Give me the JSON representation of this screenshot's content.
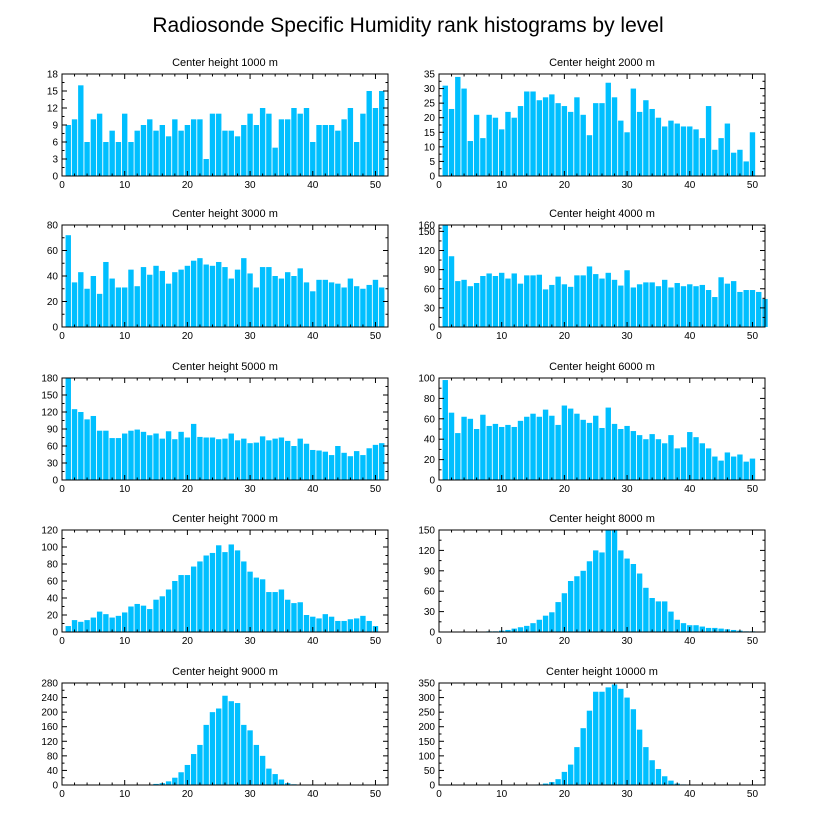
{
  "figure_title": "Radiosonde Specific Humidity rank histograms by level",
  "bar_color": "#00BFFF",
  "chart_data": [
    {
      "type": "bar",
      "title": "Center height 1000 m",
      "xlim": [
        0,
        52
      ],
      "ylim": [
        0,
        18
      ],
      "xticks": [
        0,
        10,
        20,
        30,
        40,
        50
      ],
      "yticks": [
        0,
        3,
        6,
        9,
        12,
        15,
        18
      ],
      "values": [
        9,
        10,
        16,
        6,
        10,
        11,
        6,
        8,
        6,
        11,
        6,
        8,
        9,
        10,
        8,
        9,
        7,
        10,
        8,
        9,
        10,
        10,
        3,
        11,
        11,
        8,
        8,
        7,
        9,
        11,
        9,
        12,
        11,
        5,
        10,
        10,
        12,
        11,
        12,
        6,
        9,
        9,
        9,
        8,
        10,
        12,
        6,
        11,
        15,
        12,
        15
      ]
    },
    {
      "type": "bar",
      "title": "Center height 2000 m",
      "xlim": [
        0,
        52
      ],
      "ylim": [
        0,
        35
      ],
      "xticks": [
        0,
        10,
        20,
        30,
        40,
        50
      ],
      "yticks": [
        0,
        5,
        10,
        15,
        20,
        25,
        30,
        35
      ],
      "values": [
        31,
        23,
        34,
        30,
        12,
        21,
        13,
        21,
        20,
        16,
        22,
        20,
        24,
        29,
        29,
        26,
        27,
        28,
        25,
        24,
        22,
        27,
        21,
        14,
        25,
        25,
        32,
        27,
        19,
        15,
        30,
        22,
        26,
        23,
        20,
        17,
        19,
        18,
        17,
        17,
        16,
        13,
        24,
        9,
        13,
        18,
        8,
        9,
        5,
        15
      ]
    },
    {
      "type": "bar",
      "title": "Center height 3000 m",
      "xlim": [
        0,
        52
      ],
      "ylim": [
        0,
        80
      ],
      "xticks": [
        0,
        10,
        20,
        30,
        40,
        50
      ],
      "yticks": [
        0,
        20,
        40,
        60,
        80
      ],
      "values": [
        72,
        35,
        43,
        30,
        40,
        26,
        51,
        38,
        31,
        31,
        45,
        32,
        47,
        41,
        48,
        44,
        34,
        43,
        45,
        48,
        52,
        54,
        49,
        48,
        51,
        47,
        38,
        45,
        54,
        42,
        31,
        47,
        47,
        40,
        38,
        43,
        40,
        46,
        35,
        28,
        37,
        37,
        35,
        34,
        31,
        38,
        32,
        30,
        33,
        37,
        31
      ]
    },
    {
      "type": "bar",
      "title": "Center height 4000 m",
      "xlim": [
        0,
        52
      ],
      "ylim": [
        0,
        160
      ],
      "xticks": [
        0,
        10,
        20,
        30,
        40,
        50
      ],
      "yticks": [
        0,
        30,
        60,
        90,
        120,
        150,
        160
      ],
      "values": [
        162,
        111,
        72,
        74,
        64,
        69,
        80,
        84,
        80,
        85,
        76,
        84,
        68,
        81,
        81,
        82,
        59,
        66,
        79,
        67,
        63,
        81,
        81,
        95,
        83,
        76,
        85,
        74,
        65,
        89,
        62,
        67,
        70,
        70,
        64,
        74,
        62,
        69,
        64,
        67,
        64,
        66,
        58,
        47,
        78,
        68,
        72,
        55,
        58,
        58,
        55,
        44
      ]
    },
    {
      "type": "bar",
      "title": "Center height 5000 m",
      "xlim": [
        0,
        52
      ],
      "ylim": [
        0,
        180
      ],
      "xticks": [
        0,
        10,
        20,
        30,
        40,
        50
      ],
      "yticks": [
        0,
        30,
        60,
        90,
        120,
        150,
        180
      ],
      "values": [
        180,
        125,
        120,
        107,
        113,
        87,
        87,
        74,
        74,
        82,
        87,
        89,
        85,
        79,
        82,
        73,
        86,
        72,
        85,
        75,
        99,
        76,
        75,
        75,
        72,
        73,
        82,
        70,
        73,
        65,
        66,
        77,
        70,
        73,
        75,
        69,
        60,
        73,
        64,
        53,
        52,
        50,
        44,
        60,
        48,
        42,
        51,
        44,
        56,
        62,
        65
      ]
    },
    {
      "type": "bar",
      "title": "Center height 6000 m",
      "xlim": [
        0,
        52
      ],
      "ylim": [
        0,
        100
      ],
      "xticks": [
        0,
        10,
        20,
        30,
        40,
        50
      ],
      "yticks": [
        0,
        20,
        40,
        60,
        80,
        100
      ],
      "values": [
        98,
        66,
        46,
        62,
        60,
        50,
        64,
        53,
        55,
        52,
        54,
        52,
        58,
        62,
        65,
        62,
        69,
        63,
        54,
        73,
        70,
        65,
        59,
        56,
        63,
        51,
        71,
        55,
        50,
        53,
        48,
        44,
        40,
        45,
        40,
        36,
        44,
        31,
        32,
        47,
        42,
        36,
        31,
        23,
        19,
        27,
        23,
        25,
        18,
        21
      ]
    },
    {
      "type": "bar",
      "title": "Center height 7000 m",
      "xlim": [
        0,
        52
      ],
      "ylim": [
        0,
        120
      ],
      "xticks": [
        0,
        10,
        20,
        30,
        40,
        50
      ],
      "yticks": [
        0,
        20,
        40,
        60,
        80,
        100,
        120
      ],
      "values": [
        7,
        14,
        12,
        14,
        17,
        24,
        21,
        17,
        19,
        23,
        30,
        33,
        31,
        27,
        38,
        42,
        50,
        60,
        67,
        67,
        77,
        83,
        90,
        93,
        102,
        94,
        103,
        96,
        83,
        71,
        64,
        62,
        47,
        47,
        50,
        38,
        34,
        35,
        20,
        18,
        16,
        21,
        18,
        13,
        13,
        15,
        16,
        19,
        13,
        7
      ]
    },
    {
      "type": "bar",
      "title": "Center height 8000 m",
      "xlim": [
        0,
        52
      ],
      "ylim": [
        0,
        150
      ],
      "xticks": [
        0,
        10,
        20,
        30,
        40,
        50
      ],
      "yticks": [
        0,
        30,
        60,
        90,
        120,
        150
      ],
      "values": [
        0,
        0,
        0,
        0,
        0,
        0,
        0,
        1,
        1,
        2,
        3,
        5,
        7,
        9,
        13,
        18,
        24,
        29,
        44,
        57,
        75,
        82,
        90,
        104,
        120,
        117,
        150,
        150,
        120,
        108,
        100,
        86,
        65,
        50,
        45,
        45,
        30,
        18,
        13,
        10,
        10,
        8,
        6,
        6,
        5,
        4,
        3,
        2,
        1,
        1,
        0
      ]
    },
    {
      "type": "bar",
      "title": "Center height 9000 m",
      "xlim": [
        0,
        52
      ],
      "ylim": [
        0,
        280
      ],
      "xticks": [
        0,
        10,
        20,
        30,
        40,
        50
      ],
      "yticks": [
        0,
        40,
        80,
        120,
        160,
        200,
        240,
        280
      ],
      "values": [
        0,
        0,
        0,
        0,
        0,
        0,
        0,
        0,
        0,
        0,
        0,
        0,
        0,
        1,
        3,
        5,
        10,
        20,
        35,
        55,
        85,
        110,
        165,
        200,
        210,
        245,
        230,
        225,
        165,
        150,
        110,
        80,
        45,
        30,
        15,
        5,
        2,
        1,
        0,
        0,
        0,
        0,
        0,
        0,
        0,
        0,
        0,
        0,
        0,
        0,
        0
      ]
    },
    {
      "type": "bar",
      "title": "Center height 10000 m",
      "xlim": [
        0,
        52
      ],
      "ylim": [
        0,
        350
      ],
      "xticks": [
        0,
        10,
        20,
        30,
        40,
        50
      ],
      "yticks": [
        0,
        50,
        100,
        150,
        200,
        250,
        300,
        350
      ],
      "values": [
        0,
        0,
        0,
        0,
        0,
        0,
        0,
        0,
        0,
        0,
        0,
        0,
        0,
        0,
        0,
        2,
        5,
        10,
        20,
        45,
        70,
        130,
        195,
        255,
        320,
        320,
        335,
        345,
        330,
        300,
        260,
        190,
        130,
        85,
        55,
        30,
        15,
        5,
        2,
        0,
        0,
        0,
        0,
        0,
        0,
        0,
        0,
        0,
        0,
        0,
        0
      ]
    }
  ]
}
